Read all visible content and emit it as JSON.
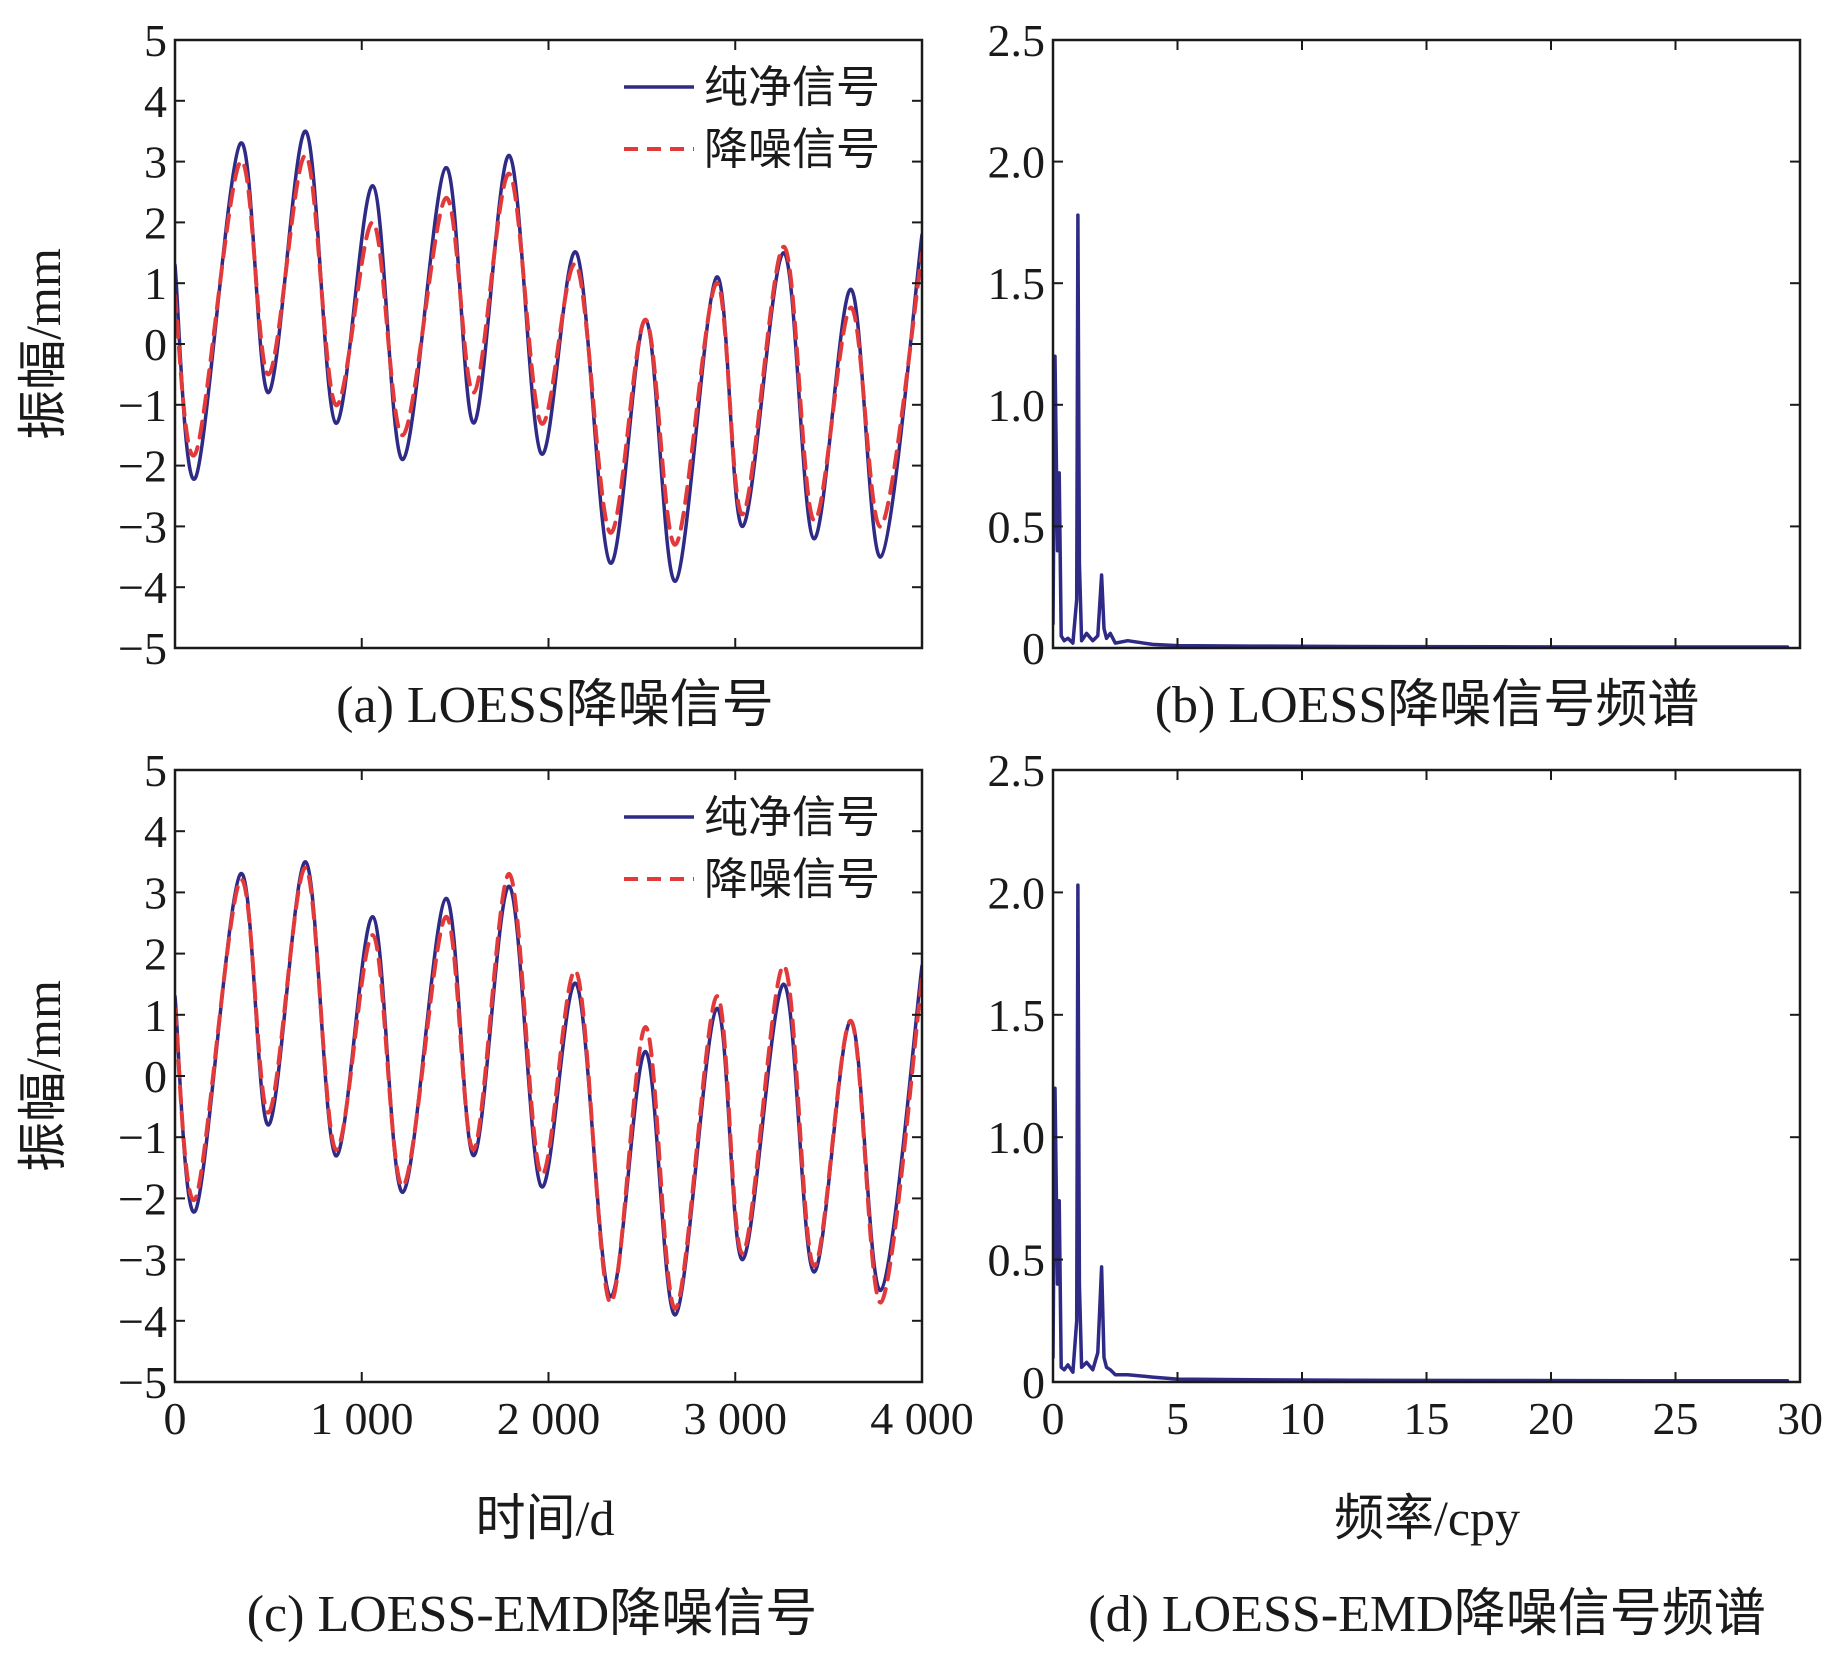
{
  "chart_data": [
    {
      "id": "a",
      "type": "line",
      "caption": "(a) LOESS降噪信号",
      "xlabel": "",
      "ylabel": "振幅/mm",
      "xlim": [
        0,
        4000
      ],
      "ylim": [
        -5,
        5
      ],
      "xticks": [
        0,
        1000,
        2000,
        3000,
        4000
      ],
      "xtick_labels": [],
      "yticks": [
        -5,
        -4,
        -3,
        -2,
        -1,
        0,
        1,
        2,
        3,
        4,
        5
      ],
      "ytick_labels": [
        "−5",
        "−4",
        "−3",
        "−2",
        "−1",
        "0",
        "1",
        "2",
        "3",
        "4",
        "5"
      ],
      "legend": {
        "position": "top-right",
        "entries": [
          "纯净信号",
          "降噪信号"
        ]
      },
      "series": [
        {
          "name": "纯净信号",
          "color": "#2e2a85",
          "style": "solid",
          "x": [
            0,
            110,
            350,
            500,
            700,
            860,
            1060,
            1220,
            1450,
            1600,
            1790,
            1960,
            2150,
            2330,
            2520,
            2680,
            2900,
            3040,
            3260,
            3420,
            3620,
            3780,
            4000
          ],
          "y": [
            1.3,
            -2.2,
            3.3,
            -0.8,
            3.5,
            -1.3,
            2.6,
            -1.9,
            2.9,
            -1.3,
            3.1,
            -1.8,
            1.5,
            -3.6,
            0.4,
            -3.9,
            1.1,
            -3.0,
            1.5,
            -3.2,
            0.9,
            -3.5,
            1.8
          ]
        },
        {
          "name": "降噪信号",
          "color": "#e23a3a",
          "style": "dashed",
          "x": [
            0,
            110,
            350,
            500,
            700,
            860,
            1060,
            1220,
            1450,
            1600,
            1790,
            1960,
            2150,
            2330,
            2520,
            2680,
            2900,
            3040,
            3260,
            3420,
            3620,
            3780,
            4000
          ],
          "y": [
            0.8,
            -1.8,
            3.0,
            -0.5,
            3.1,
            -1.0,
            2.0,
            -1.5,
            2.4,
            -0.8,
            2.8,
            -1.3,
            1.3,
            -3.1,
            0.4,
            -3.3,
            1.0,
            -2.8,
            1.6,
            -2.9,
            0.6,
            -3.0,
            1.5
          ]
        }
      ]
    },
    {
      "id": "b",
      "type": "line",
      "caption": "(b) LOESS降噪信号频谱",
      "xlabel": "",
      "ylabel": "",
      "xlim": [
        0,
        30
      ],
      "ylim": [
        0,
        2.5
      ],
      "xticks": [
        0,
        5,
        10,
        15,
        20,
        25,
        30
      ],
      "xtick_labels": [],
      "yticks": [
        0,
        0.5,
        1.0,
        1.5,
        2.0,
        2.5
      ],
      "ytick_labels": [
        "0",
        "0.5",
        "1.0",
        "1.5",
        "2.0",
        "2.5"
      ],
      "series": [
        {
          "name": "",
          "color": "#2e2a85",
          "style": "solid",
          "x": [
            0,
            0.08,
            0.18,
            0.25,
            0.33,
            0.45,
            0.6,
            0.8,
            0.95,
            1.0,
            1.06,
            1.15,
            1.35,
            1.6,
            1.8,
            1.95,
            2.05,
            2.15,
            2.3,
            2.5,
            3.0,
            4.0,
            5.0,
            8.0,
            12.0,
            18.0,
            24.0,
            29.5
          ],
          "y": [
            0.1,
            1.2,
            0.4,
            0.72,
            0.05,
            0.03,
            0.04,
            0.02,
            0.2,
            1.78,
            0.35,
            0.03,
            0.06,
            0.03,
            0.05,
            0.3,
            0.08,
            0.04,
            0.06,
            0.02,
            0.03,
            0.015,
            0.01,
            0.008,
            0.006,
            0.005,
            0.004,
            0.004
          ]
        }
      ]
    },
    {
      "id": "c",
      "type": "line",
      "caption": "(c) LOESS-EMD降噪信号",
      "xlabel": "时间/d",
      "ylabel": "振幅/mm",
      "xlim": [
        0,
        4000
      ],
      "ylim": [
        -5,
        5
      ],
      "xticks": [
        0,
        1000,
        2000,
        3000,
        4000
      ],
      "xtick_labels": [
        "0",
        "1 000",
        "2 000",
        "3 000",
        "4 000"
      ],
      "yticks": [
        -5,
        -4,
        -3,
        -2,
        -1,
        0,
        1,
        2,
        3,
        4,
        5
      ],
      "ytick_labels": [
        "−5",
        "−4",
        "−3",
        "−2",
        "−1",
        "0",
        "1",
        "2",
        "3",
        "4",
        "5"
      ],
      "legend": {
        "position": "top-right",
        "entries": [
          "纯净信号",
          "降噪信号"
        ]
      },
      "series": [
        {
          "name": "纯净信号",
          "color": "#2e2a85",
          "style": "solid",
          "x": [
            0,
            110,
            350,
            500,
            700,
            860,
            1060,
            1220,
            1450,
            1600,
            1790,
            1960,
            2150,
            2330,
            2520,
            2680,
            2900,
            3040,
            3260,
            3420,
            3620,
            3780,
            4000
          ],
          "y": [
            1.3,
            -2.2,
            3.3,
            -0.8,
            3.5,
            -1.3,
            2.6,
            -1.9,
            2.9,
            -1.3,
            3.1,
            -1.8,
            1.5,
            -3.6,
            0.4,
            -3.9,
            1.1,
            -3.0,
            1.5,
            -3.2,
            0.9,
            -3.5,
            1.8
          ]
        },
        {
          "name": "降噪信号",
          "color": "#e23a3a",
          "style": "dashed",
          "x": [
            0,
            110,
            350,
            500,
            700,
            860,
            1060,
            1220,
            1450,
            1600,
            1790,
            1960,
            2150,
            2330,
            2520,
            2680,
            2900,
            3040,
            3260,
            3420,
            3620,
            3780,
            4000
          ],
          "y": [
            1.1,
            -2.0,
            3.2,
            -0.6,
            3.4,
            -1.2,
            2.3,
            -1.8,
            2.6,
            -1.2,
            3.3,
            -1.6,
            1.7,
            -3.7,
            0.8,
            -3.8,
            1.3,
            -2.9,
            1.8,
            -3.1,
            0.9,
            -3.7,
            1.6
          ]
        }
      ]
    },
    {
      "id": "d",
      "type": "line",
      "caption": "(d) LOESS-EMD降噪信号频谱",
      "xlabel": "频率/cpy",
      "ylabel": "",
      "xlim": [
        0,
        30
      ],
      "ylim": [
        0,
        2.5
      ],
      "xticks": [
        0,
        5,
        10,
        15,
        20,
        25,
        30
      ],
      "xtick_labels": [
        "0",
        "5",
        "10",
        "15",
        "20",
        "25",
        "30"
      ],
      "yticks": [
        0,
        0.5,
        1.0,
        1.5,
        2.0,
        2.5
      ],
      "ytick_labels": [
        "0",
        "0.5",
        "1.0",
        "1.5",
        "2.0",
        "2.5"
      ],
      "series": [
        {
          "name": "",
          "color": "#2e2a85",
          "style": "solid",
          "x": [
            0,
            0.08,
            0.18,
            0.25,
            0.33,
            0.45,
            0.6,
            0.8,
            0.95,
            1.0,
            1.06,
            1.15,
            1.35,
            1.6,
            1.8,
            1.95,
            2.05,
            2.15,
            2.3,
            2.5,
            3.0,
            4.0,
            5.0,
            8.0,
            12.0,
            18.0,
            24.0,
            29.5
          ],
          "y": [
            0.1,
            1.2,
            0.4,
            0.74,
            0.06,
            0.05,
            0.07,
            0.04,
            0.25,
            2.03,
            0.4,
            0.06,
            0.08,
            0.05,
            0.12,
            0.47,
            0.1,
            0.06,
            0.05,
            0.03,
            0.03,
            0.02,
            0.012,
            0.009,
            0.007,
            0.006,
            0.005,
            0.005
          ]
        }
      ]
    }
  ]
}
